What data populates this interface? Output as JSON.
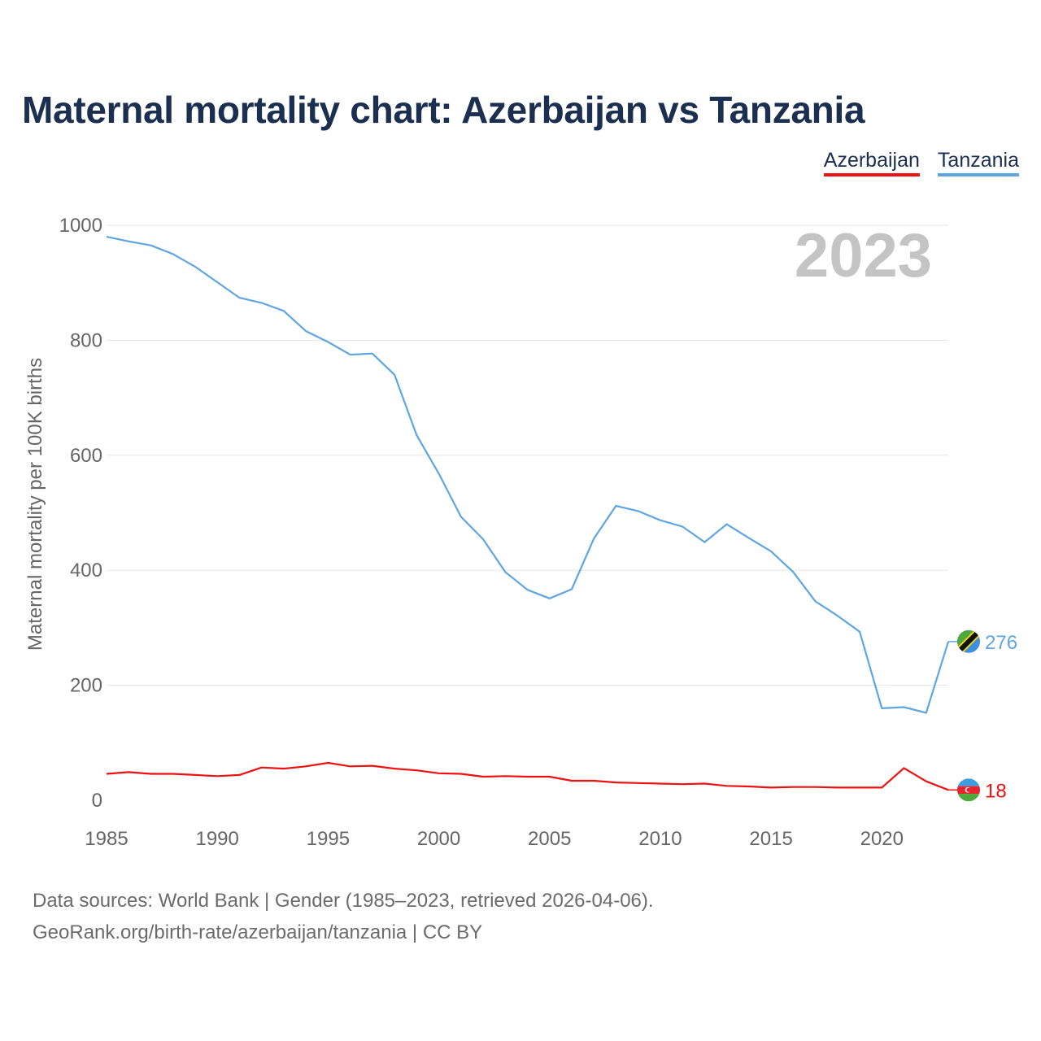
{
  "title": "Maternal mortality chart: Azerbaijan vs Tanzania",
  "legend": [
    {
      "label": "Azerbaijan",
      "color": "#ee1111"
    },
    {
      "label": "Tanzania",
      "color": "#5ea6e2"
    }
  ],
  "source": {
    "line1": "Data sources: World Bank | Gender (1985–2023, retrieved 2026-04-06).",
    "line2": "GeoRank.org/birth-rate/azerbaijan/tanzania | CC BY"
  },
  "chart_data": {
    "type": "line",
    "year_label": "2023",
    "ylabel": "Maternal mortality per 100K births",
    "xlabel": "",
    "ylim": [
      0,
      1000
    ],
    "xlim": [
      1985,
      2023
    ],
    "yticks": [
      0,
      200,
      400,
      600,
      800,
      1000
    ],
    "xticks": [
      1985,
      1990,
      1995,
      2000,
      2005,
      2010,
      2015,
      2020
    ],
    "grid": true,
    "x": [
      1985,
      1986,
      1987,
      1988,
      1989,
      1990,
      1991,
      1992,
      1993,
      1994,
      1995,
      1996,
      1997,
      1998,
      1999,
      2000,
      2001,
      2002,
      2003,
      2004,
      2005,
      2006,
      2007,
      2008,
      2009,
      2010,
      2011,
      2012,
      2013,
      2014,
      2015,
      2016,
      2017,
      2018,
      2019,
      2020,
      2021,
      2022,
      2023
    ],
    "series": [
      {
        "name": "Azerbaijan",
        "color": "#ee1111",
        "end_label": "18",
        "values": [
          46,
          49,
          46,
          46,
          44,
          42,
          44,
          57,
          55,
          59,
          65,
          59,
          60,
          55,
          52,
          47,
          46,
          41,
          42,
          41,
          41,
          34,
          34,
          31,
          30,
          29,
          28,
          29,
          25,
          24,
          22,
          23,
          23,
          22,
          22,
          22,
          56,
          33,
          18
        ]
      },
      {
        "name": "Tanzania",
        "color": "#5ea6e2",
        "end_label": "276",
        "values": [
          980,
          972,
          965,
          950,
          928,
          901,
          874,
          865,
          851,
          816,
          797,
          775,
          777,
          740,
          635,
          568,
          493,
          454,
          397,
          366,
          351,
          367,
          455,
          512,
          503,
          487,
          476,
          449,
          480,
          456,
          433,
          397,
          346,
          321,
          293,
          160,
          162,
          152,
          276
        ]
      }
    ]
  }
}
